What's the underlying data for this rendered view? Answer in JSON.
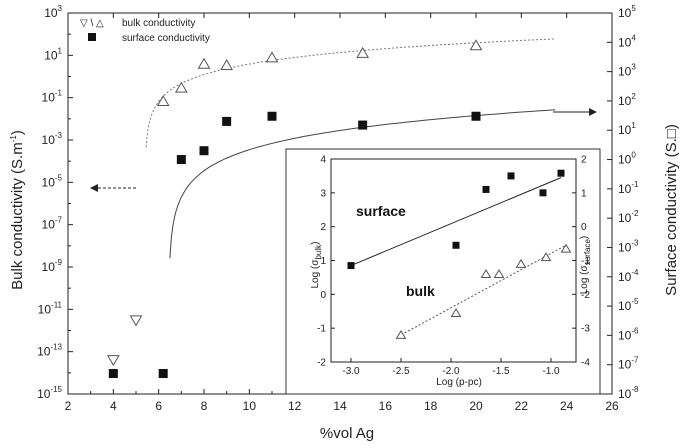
{
  "chart_data": [
    {
      "type": "scatter",
      "xlabel": "%vol Ag",
      "ylabel": "Bulk conductivity (S.m-1)",
      "ylabel_main": "Bulk conductivity (S.m",
      "ylabel_sup": "-1",
      "ylabel_close": ")",
      "y2label": "Surface conductivity (S.□)",
      "xlim": [
        2,
        26
      ],
      "ylim": [
        1e-15,
        1000
      ],
      "y2lim": [
        1e-08,
        100000
      ],
      "yscale": "log",
      "y2scale": "log",
      "x_ticks": [
        "2",
        "4",
        "6",
        "8",
        "10",
        "12",
        "14",
        "16",
        "18",
        "20",
        "22",
        "24",
        "26"
      ],
      "y_tick_exponents": [
        "-15",
        "-13",
        "-11",
        "-9",
        "-7",
        "-5",
        "-3",
        "-1",
        "1",
        "3"
      ],
      "y2_tick_exponents": [
        "-8",
        "-7",
        "-6",
        "-5",
        "-4",
        "-3",
        "-2",
        "-1",
        "0",
        "1",
        "2",
        "3",
        "4",
        "5"
      ],
      "tick_base": "10",
      "legend": {
        "placement": "top-left",
        "bulk_label": "bulk conductivity",
        "bulk_markers": "▽ \\ △",
        "surface_label": "surface conductivity"
      },
      "series": [
        {
          "name": "bulk conductivity",
          "axis": "left",
          "marker": "triangle-open",
          "x": [
            4,
            5,
            6.2,
            7,
            8,
            9,
            11,
            15,
            20
          ],
          "y": [
            4e-14,
            3e-12,
            0.07,
            0.3,
            4,
            3.5,
            8,
            13,
            30
          ],
          "down_triangle_indices": [
            0,
            1
          ]
        },
        {
          "name": "surface conductivity",
          "axis": "right",
          "marker": "square-filled",
          "x": [
            4,
            6.2,
            7,
            8,
            9,
            11,
            15,
            20
          ],
          "y": [
            5e-08,
            5e-08,
            1,
            2,
            20,
            30,
            15,
            30
          ]
        }
      ],
      "fit_curves": [
        {
          "name": "bulk fit",
          "axis": "left",
          "style": "dotted",
          "pc": 5.4,
          "x_start": 5.45,
          "x_end": 23.5,
          "y_end": 60
        },
        {
          "name": "surface fit",
          "axis": "right",
          "style": "solid",
          "pc": 6.45,
          "x_start": 6.5,
          "x_end": 23.5,
          "y_end": 50
        }
      ]
    },
    {
      "type": "scatter",
      "xlabel": "Log (p-pc)",
      "ylabel": "Log (σbulk)",
      "ylabel_main": "Log (σ",
      "ylabel_sub": "bulk",
      "ylabel_close": ")",
      "y2label": "Log (σsurface)",
      "y2label_main": "Log (σ",
      "y2label_sub": "surface",
      "y2label_close": ")",
      "xlim": [
        -3.2,
        -0.75
      ],
      "ylim": [
        -2,
        4
      ],
      "y2lim": [
        -4,
        2
      ],
      "x_ticks": [
        "-3.0",
        "-2.5",
        "-2.0",
        "-1.5",
        "-1.0"
      ],
      "y_ticks": [
        "-2",
        "-1",
        "0",
        "1",
        "2",
        "3",
        "4"
      ],
      "y2_ticks": [
        "-4",
        "-3",
        "-2",
        "-1",
        "0",
        "1",
        "2"
      ],
      "annotations": [
        "surface",
        "bulk"
      ],
      "series": [
        {
          "name": "surface",
          "axis": "right",
          "marker": "square-filled",
          "x": [
            -3.0,
            -1.95,
            -1.65,
            -1.4,
            -1.08,
            -0.9
          ],
          "y": [
            -1.15,
            -0.55,
            1.1,
            1.5,
            1.0,
            1.58
          ],
          "fit": {
            "x": [
              -3.0,
              -0.9
            ],
            "y": [
              -1.15,
              1.45
            ]
          }
        },
        {
          "name": "bulk",
          "axis": "left",
          "marker": "triangle-open",
          "x": [
            -2.5,
            -1.95,
            -1.65,
            -1.52,
            -1.3,
            -1.05,
            -0.85
          ],
          "y": [
            -1.2,
            -0.55,
            0.6,
            0.6,
            0.9,
            1.1,
            1.35
          ],
          "fit": {
            "x": [
              -2.5,
              -0.85
            ],
            "y": [
              -1.2,
              1.45
            ]
          }
        }
      ]
    }
  ]
}
